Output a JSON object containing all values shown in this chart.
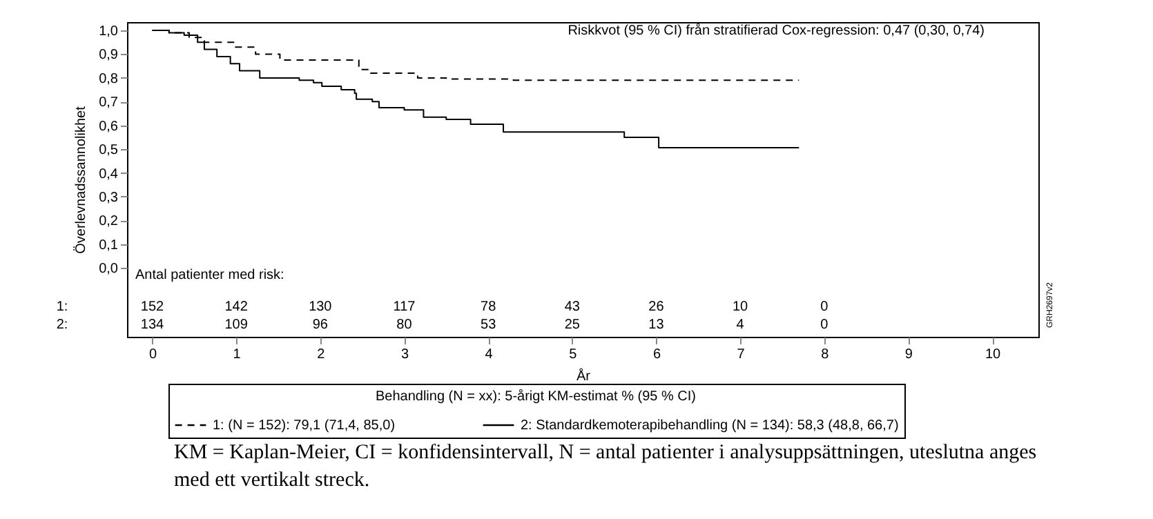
{
  "chart_data": {
    "type": "step",
    "xlabel": "År",
    "ylabel": "Överlevnadssannolikhet",
    "legend_title": "Behandling (N = xx): 5-årigt KM-estimat % (95 % CI)",
    "legend": "bottom",
    "marker": "none",
    "grid": false,
    "xlim": [
      -0.3,
      10.55
    ],
    "ylim": [
      -0.29,
      1.035
    ],
    "xticks": [
      0,
      1,
      2,
      3,
      4,
      5,
      6,
      7,
      8,
      9,
      10
    ],
    "yticks": [
      {
        "value": 0,
        "label": "0,0"
      },
      {
        "value": 0.1,
        "label": "0,1"
      },
      {
        "value": 0.2,
        "label": "0,2"
      },
      {
        "value": 0.3,
        "label": "0,3"
      },
      {
        "value": 0.4,
        "label": "0,4"
      },
      {
        "value": 0.5,
        "label": "0,5"
      },
      {
        "value": 0.6,
        "label": "0,6"
      },
      {
        "value": 0.7,
        "label": "0,7"
      },
      {
        "value": 0.8,
        "label": "0,8"
      },
      {
        "value": 0.9,
        "label": "0,9"
      },
      {
        "value": 1,
        "label": "1,0"
      }
    ],
    "series": [
      {
        "name": "1: (N = 152): 79,1 (71,4, 85,0)",
        "color": "#000000",
        "line_style": "dashed",
        "x": [
          0,
          0.2,
          0.44,
          0.62,
          0.98,
          1.23,
          1.52,
          2.46,
          2.6,
          3.16,
          3.5,
          4.3,
          7.7
        ],
        "values": [
          1,
          0.99,
          0.97,
          0.95,
          0.93,
          0.9,
          0.875,
          0.835,
          0.82,
          0.8,
          0.795,
          0.79,
          0.79
        ]
      },
      {
        "name": "2: Standardkemoterapibehandling (N = 134): 58,3 (48,8, 66,7)",
        "color": "#000000",
        "line_style": "solid",
        "x": [
          0,
          0.2,
          0.38,
          0.54,
          0.62,
          0.77,
          0.93,
          1.04,
          1.28,
          1.52,
          1.75,
          1.92,
          2.02,
          2.25,
          2.41,
          2.43,
          2.62,
          2.7,
          3.0,
          3.23,
          3.5,
          3.79,
          4.18,
          5.62,
          6.03,
          7.7
        ],
        "values": [
          1,
          0.99,
          0.98,
          0.95,
          0.92,
          0.89,
          0.86,
          0.83,
          0.8,
          0.8,
          0.79,
          0.78,
          0.765,
          0.75,
          0.735,
          0.71,
          0.7,
          0.675,
          0.665,
          0.635,
          0.625,
          0.605,
          0.572,
          0.55,
          0.506,
          0.506
        ]
      }
    ],
    "annotations": [
      "Riskkvot (95 % CI) från stratifierad Cox-regression: 0,47 (0,30, 0,74)",
      "Antal patienter med risk:",
      "1: 152 142 130 117 78 43 26 10 0",
      "2: 134 109 96 80 53 25 13 4 0",
      "GRH2697v2",
      "KM = Kaplan-Meier, CI = konfidensintervall, N = antal patienter i analysuppsättningen, uteslutna anges med ett vertikalt streck."
    ]
  }
}
